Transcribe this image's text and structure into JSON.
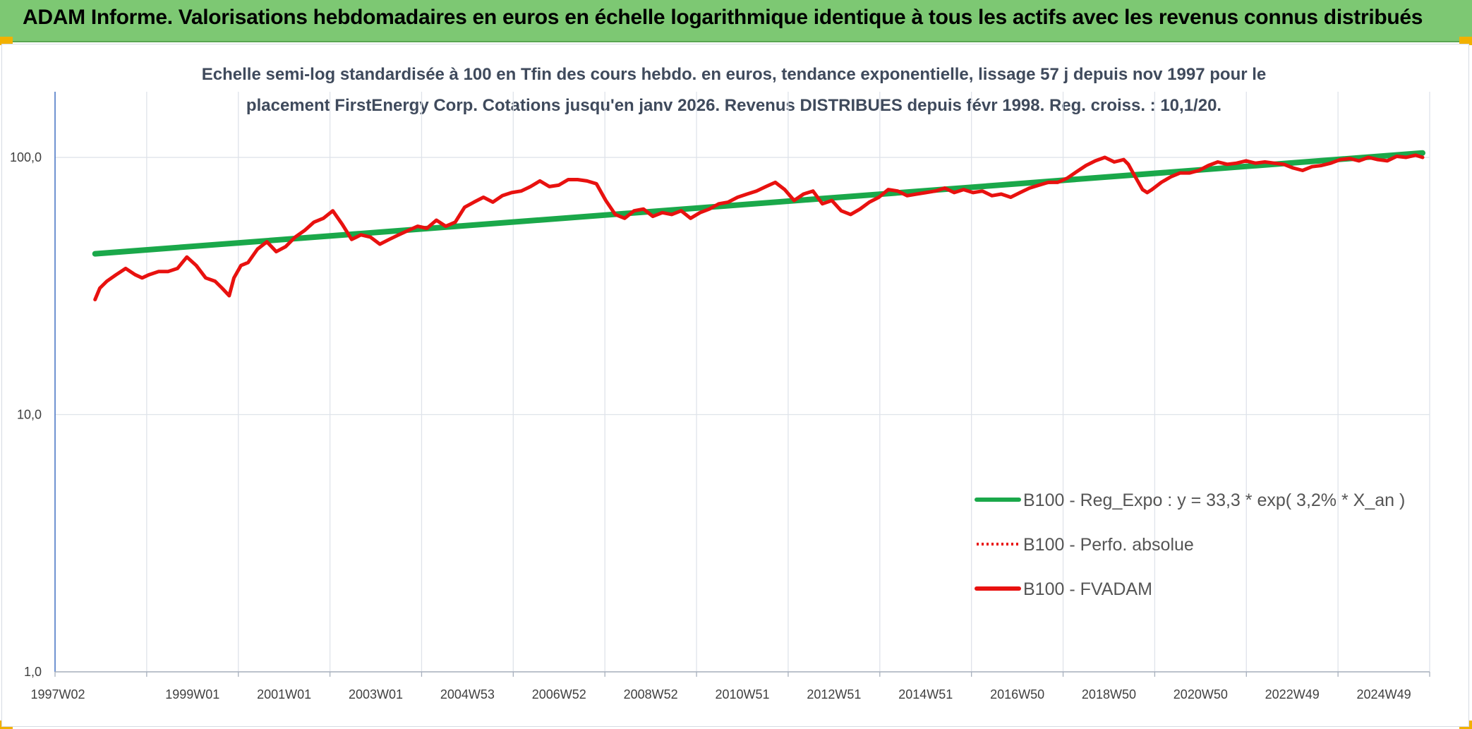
{
  "header": {
    "title": "ADAM Informe. Valorisations hebdomadaires en euros en échelle logarithmique identique à tous les actifs avec les revenus connus distribués",
    "bg_color": "#7dc873",
    "corner_color": "#f2b100"
  },
  "chart_data": {
    "type": "line",
    "title_line1": "Echelle semi-log standardisée à 100 en Tfin des cours hebdo. en euros, tendance exponentielle, lissage 57 j depuis nov 1997 pour le",
    "title_line2": "placement FirstEnergy Corp. Cotations jusqu'en janv 2026. Revenus DISTRIBUES depuis févr 1998. Reg. croiss. : 10,1/20.",
    "y_scale": "log",
    "ylim": [
      1,
      180
    ],
    "y_ticks": [
      {
        "value": 1,
        "label": "1,0"
      },
      {
        "value": 10,
        "label": "10,0"
      },
      {
        "value": 100,
        "label": "100,0"
      }
    ],
    "x_ticks": [
      "1997W02",
      "1999W01",
      "2001W01",
      "2003W01",
      "2004W53",
      "2006W52",
      "2008W52",
      "2010W51",
      "2012W51",
      "2014W51",
      "2016W50",
      "2018W50",
      "2020W50",
      "2022W49",
      "2024W49"
    ],
    "xlim": [
      1997.0,
      2026.2
    ],
    "grid": true,
    "legend_position": "bottom-right",
    "series": [
      {
        "name": "B100 - Reg_Expo : y = 33,3 * exp( 3,2% *  X_an )",
        "color": "#1aa84a",
        "style": "solid",
        "x": [
          1997.85,
          2026.05
        ],
        "y": [
          42.2,
          104.0
        ]
      },
      {
        "name": "B100 - Perfo. absolue",
        "color": "#e8110f",
        "style": "dotted",
        "x": [],
        "y": []
      },
      {
        "name": "B100 - FVADAM",
        "color": "#e8110f",
        "style": "solid",
        "x": [
          1997.85,
          1997.95,
          1998.1,
          1998.3,
          1998.5,
          1998.7,
          1998.85,
          1999.0,
          1999.2,
          1999.4,
          1999.6,
          1999.8,
          2000.0,
          2000.2,
          2000.4,
          2000.55,
          2000.7,
          2000.8,
          2000.95,
          2001.1,
          2001.3,
          2001.5,
          2001.7,
          2001.9,
          2002.1,
          2002.3,
          2002.5,
          2002.7,
          2002.9,
          2003.1,
          2003.3,
          2003.5,
          2003.7,
          2003.9,
          2004.1,
          2004.3,
          2004.5,
          2004.7,
          2004.9,
          2005.1,
          2005.3,
          2005.5,
          2005.7,
          2005.9,
          2006.1,
          2006.3,
          2006.5,
          2006.7,
          2006.9,
          2007.1,
          2007.3,
          2007.5,
          2007.7,
          2007.9,
          2008.1,
          2008.3,
          2008.5,
          2008.7,
          2008.9,
          2009.1,
          2009.3,
          2009.5,
          2009.7,
          2009.9,
          2010.1,
          2010.3,
          2010.5,
          2010.7,
          2010.9,
          2011.1,
          2011.3,
          2011.5,
          2011.7,
          2011.9,
          2012.1,
          2012.3,
          2012.5,
          2012.7,
          2012.9,
          2013.1,
          2013.3,
          2013.5,
          2013.7,
          2013.9,
          2014.1,
          2014.3,
          2014.5,
          2014.7,
          2014.9,
          2015.1,
          2015.3,
          2015.5,
          2015.7,
          2015.9,
          2016.1,
          2016.3,
          2016.5,
          2016.7,
          2016.9,
          2017.1,
          2017.3,
          2017.5,
          2017.7,
          2017.9,
          2018.1,
          2018.3,
          2018.5,
          2018.7,
          2018.9,
          2019.1,
          2019.3,
          2019.5,
          2019.7,
          2019.8,
          2019.9,
          2020.1,
          2020.2,
          2020.3,
          2020.5,
          2020.7,
          2020.9,
          2021.1,
          2021.3,
          2021.5,
          2021.7,
          2021.9,
          2022.1,
          2022.3,
          2022.5,
          2022.7,
          2022.9,
          2023.1,
          2023.3,
          2023.5,
          2023.7,
          2023.9,
          2024.1,
          2024.3,
          2024.5,
          2024.7,
          2024.9,
          2025.1,
          2025.3,
          2025.5,
          2025.7,
          2025.9,
          2026.05
        ],
        "y": [
          28,
          31,
          33,
          35,
          37,
          35,
          34,
          35,
          36,
          36,
          37,
          41,
          38,
          34,
          33,
          31,
          29,
          34,
          38,
          39,
          44,
          47,
          43,
          45,
          49,
          52,
          56,
          58,
          62,
          55,
          48,
          50,
          49,
          46,
          48,
          50,
          52,
          54,
          53,
          57,
          54,
          56,
          64,
          67,
          70,
          67,
          71,
          73,
          74,
          77,
          81,
          77,
          78,
          82,
          82,
          81,
          79,
          68,
          60,
          58,
          62,
          63,
          59,
          61,
          60,
          62,
          58,
          61,
          63,
          66,
          67,
          70,
          72,
          74,
          77,
          80,
          75,
          68,
          72,
          74,
          66,
          68,
          62,
          60,
          63,
          67,
          70,
          75,
          74,
          71,
          72,
          73,
          74,
          76,
          73,
          75,
          73,
          74,
          71,
          72,
          70,
          73,
          76,
          78,
          80,
          80,
          83,
          88,
          93,
          97,
          100,
          96,
          98,
          94,
          87,
          75,
          73,
          75,
          80,
          84,
          87,
          87,
          89,
          93,
          96,
          94,
          95,
          97,
          95,
          96,
          95,
          94,
          91,
          89,
          92,
          93,
          95,
          98,
          99,
          97,
          100,
          98,
          97,
          101,
          100,
          102,
          100
        ]
      }
    ]
  }
}
